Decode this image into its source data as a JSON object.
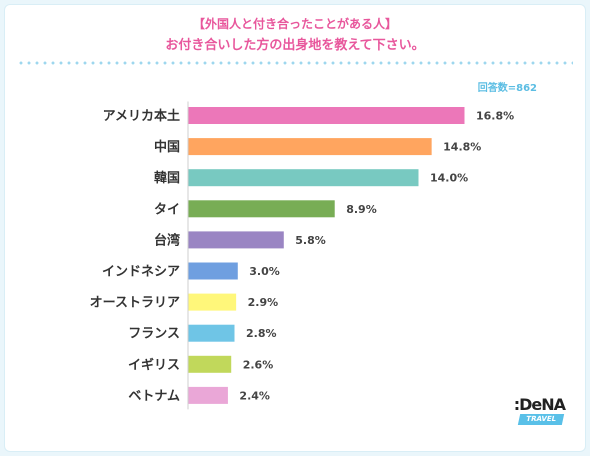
{
  "header": {
    "subtitle": "【外国人と付き合ったことがある人】",
    "title": "お付き合いした方の出身地を教えて下さい。",
    "respondents": "回答数=862"
  },
  "logo": {
    "main": ":DeNA",
    "band": "TRAVEL"
  },
  "chart_data": {
    "type": "bar",
    "orientation": "horizontal",
    "title": "お付き合いした方の出身地を教えて下さい。",
    "categories": [
      "アメリカ本土",
      "中国",
      "韓国",
      "タイ",
      "台湾",
      "インドネシア",
      "オーストラリア",
      "フランス",
      "イギリス",
      "ベトナム"
    ],
    "values": [
      16.8,
      14.8,
      14.0,
      8.9,
      5.8,
      3.0,
      2.9,
      2.8,
      2.6,
      2.4
    ],
    "value_labels": [
      "16.8%",
      "14.8%",
      "14.0%",
      "8.9%",
      "5.8%",
      "3.0%",
      "2.9%",
      "2.8%",
      "2.6%",
      "2.4%"
    ],
    "colors": [
      "#ec77b9",
      "#ffa55f",
      "#78c9c1",
      "#78ad55",
      "#9a85c3",
      "#6f9fe0",
      "#fff77a",
      "#6fc5e6",
      "#c1d85b",
      "#eaa7d7"
    ],
    "grid": false,
    "legend": "none"
  }
}
